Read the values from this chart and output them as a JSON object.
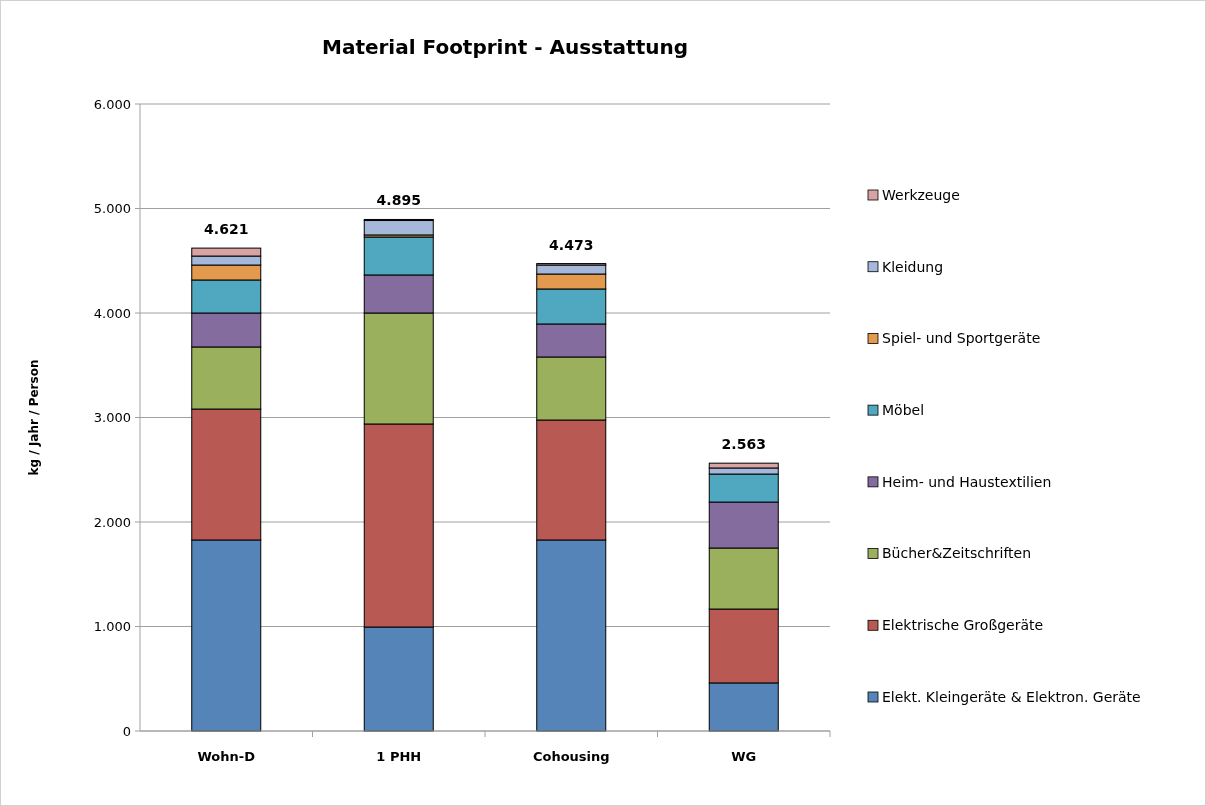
{
  "chart_data": {
    "type": "bar",
    "stacked": true,
    "title": "Material Footprint - Ausstattung",
    "ylabel": "kg / Jahr / Person",
    "categories": [
      "Wohn-D",
      "1 PHH",
      "Cohousing",
      "WG"
    ],
    "series": [
      {
        "name": "Elekt. Kleingeräte & Elektron. Geräte",
        "color": "#5585b8",
        "values": [
          1828,
          995,
          1828,
          460
        ]
      },
      {
        "name": "Elektrische Großgeräte",
        "color": "#b85a53",
        "values": [
          1253,
          1943,
          1148,
          707
        ]
      },
      {
        "name": "Bücher&Zeitschriften",
        "color": "#9bb05c",
        "values": [
          594,
          1062,
          603,
          584
        ]
      },
      {
        "name": "Heim- und Haustextilien",
        "color": "#846d9e",
        "values": [
          325,
          364,
          316,
          440
        ]
      },
      {
        "name": "Möbel",
        "color": "#4fa8bf",
        "values": [
          316,
          363,
          335,
          268
        ]
      },
      {
        "name": "Spiel- und Sportgeräte",
        "color": "#e39a4f",
        "values": [
          143,
          20,
          143,
          null
        ]
      },
      {
        "name": "Kleidung",
        "color": "#a5b8da",
        "values": [
          86,
          138,
          86,
          58
        ]
      },
      {
        "name": "Werkzeuge",
        "color": "#d9a3a3",
        "values": [
          76,
          10,
          14,
          46
        ]
      }
    ],
    "totals": [
      "4.621",
      "4.895",
      "4.473",
      "2.563"
    ],
    "ylim": [
      0,
      6000
    ],
    "yticks": [
      {
        "value": 0,
        "label": "0"
      },
      {
        "value": 1000,
        "label": "1.000"
      },
      {
        "value": 2000,
        "label": "2.000"
      },
      {
        "value": 3000,
        "label": "3.000"
      },
      {
        "value": 4000,
        "label": "4.000"
      },
      {
        "value": 5000,
        "label": "5.000"
      },
      {
        "value": 6000,
        "label": "6.000"
      }
    ],
    "grid": "y",
    "legend": "right"
  }
}
